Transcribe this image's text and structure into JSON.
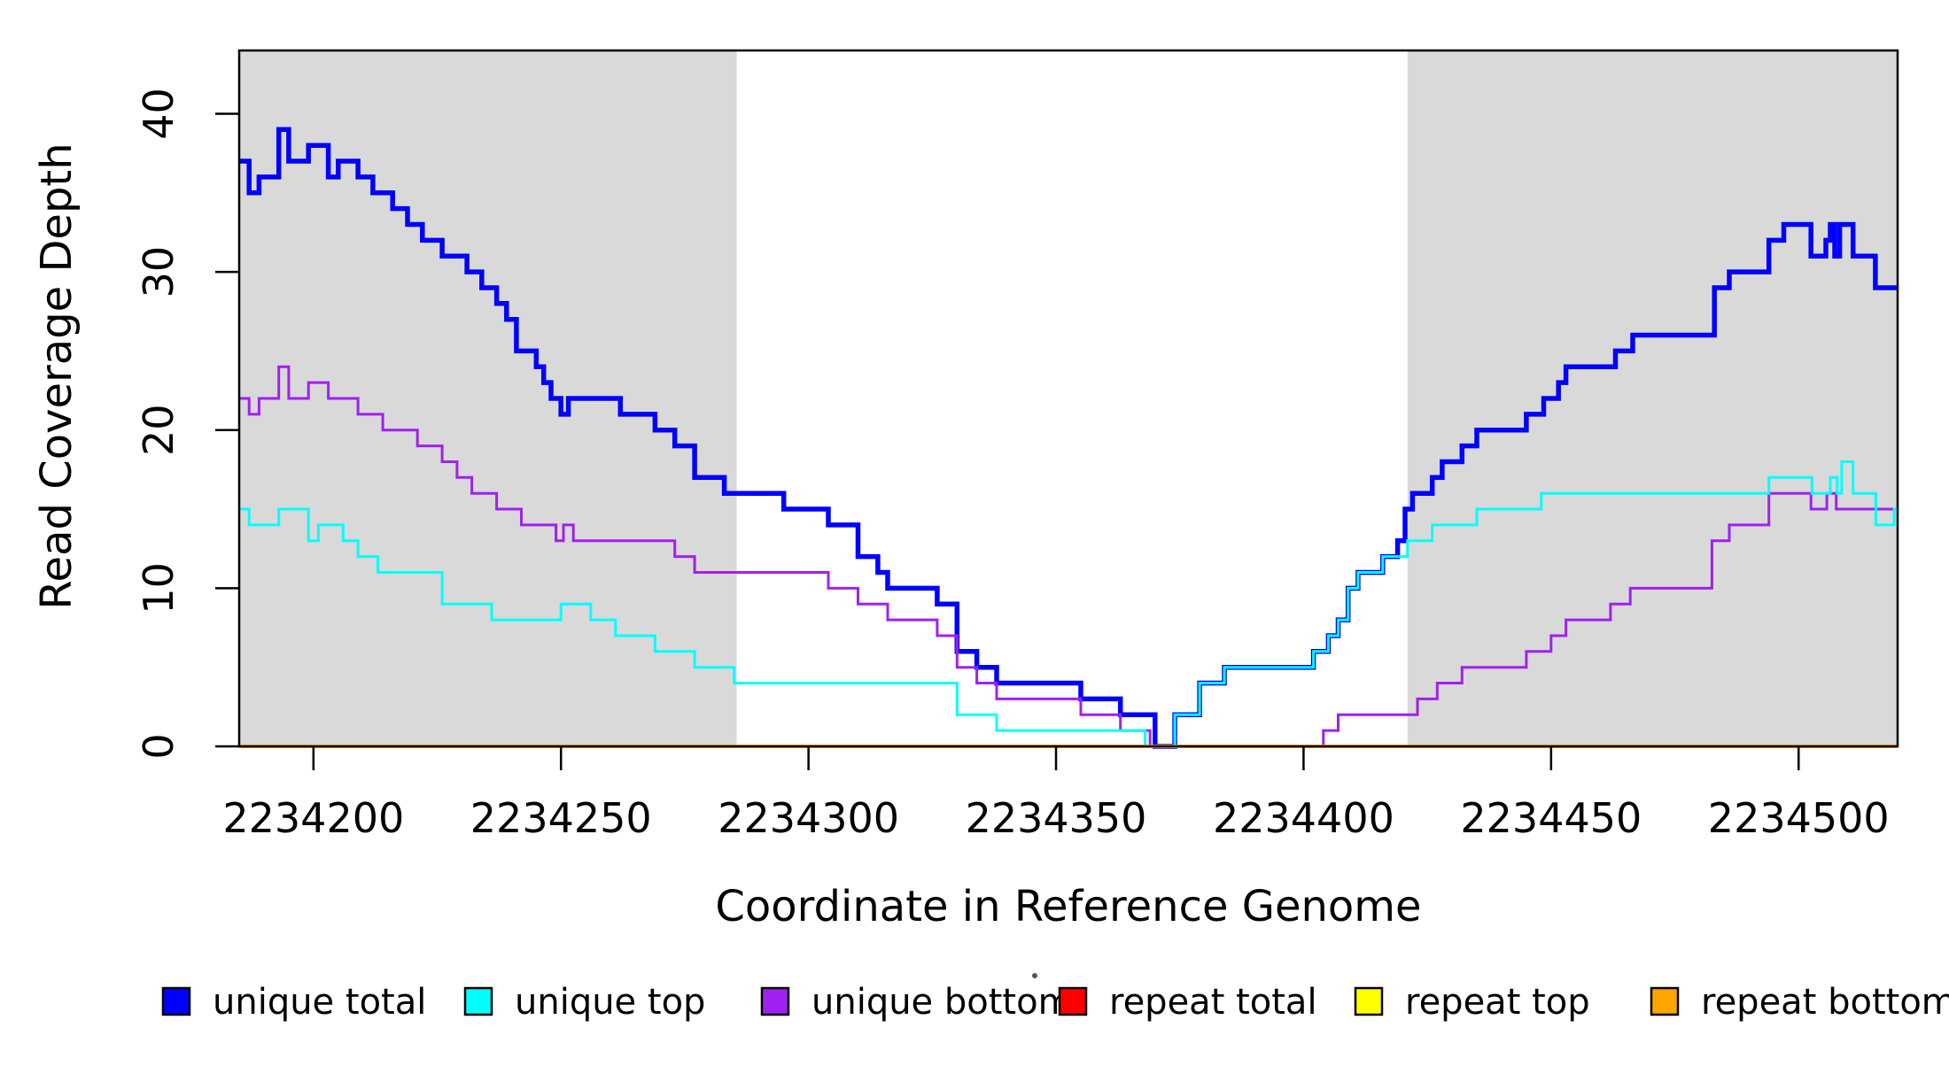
{
  "figure": {
    "kind": "R base-graphics coverage plot",
    "background": "#ffffff"
  },
  "chart_data": {
    "type": "line",
    "step_mode": "after",
    "title": "",
    "xlabel": "Coordinate in Reference Genome",
    "ylabel": "Read Coverage Depth",
    "xlim": [
      2234185,
      2234520
    ],
    "ylim": [
      0,
      44
    ],
    "xticks": [
      2234200,
      2234250,
      2234300,
      2234350,
      2234400,
      2234450,
      2234500
    ],
    "yticks": [
      0,
      10,
      20,
      30,
      40
    ],
    "grid": false,
    "legend_position": "bottom",
    "axis_color": "#000000",
    "shaded_regions": {
      "color": "#D9D9D9",
      "ranges": [
        [
          2234185,
          2234285.5
        ],
        [
          2234421,
          2234520
        ]
      ]
    },
    "series": [
      {
        "name": "unique total",
        "color": "#0000FF",
        "width": 5.5,
        "points": [
          [
            2234185,
            37
          ],
          [
            2234187,
            35
          ],
          [
            2234189,
            36
          ],
          [
            2234193,
            39
          ],
          [
            2234195,
            37
          ],
          [
            2234199,
            38
          ],
          [
            2234203,
            36
          ],
          [
            2234205,
            37
          ],
          [
            2234209,
            36
          ],
          [
            2234212,
            35
          ],
          [
            2234216,
            34
          ],
          [
            2234219,
            33
          ],
          [
            2234222,
            32
          ],
          [
            2234226,
            31
          ],
          [
            2234231,
            30
          ],
          [
            2234234,
            29
          ],
          [
            2234237,
            28
          ],
          [
            2234239,
            27
          ],
          [
            2234241,
            25
          ],
          [
            2234245,
            24
          ],
          [
            2234246.5,
            23
          ],
          [
            2234248,
            22
          ],
          [
            2234250,
            21
          ],
          [
            2234251.5,
            22
          ],
          [
            2234262,
            21
          ],
          [
            2234269,
            20
          ],
          [
            2234273,
            19
          ],
          [
            2234277,
            17
          ],
          [
            2234283,
            16
          ],
          [
            2234295,
            15
          ],
          [
            2234304,
            14
          ],
          [
            2234310,
            12
          ],
          [
            2234314,
            11
          ],
          [
            2234316,
            10
          ],
          [
            2234326,
            9
          ],
          [
            2234330,
            6
          ],
          [
            2234334,
            5
          ],
          [
            2234338,
            4
          ],
          [
            2234355,
            3
          ],
          [
            2234363,
            2
          ],
          [
            2234370,
            0
          ],
          [
            2234374,
            2
          ],
          [
            2234379,
            4
          ],
          [
            2234384,
            5
          ],
          [
            2234402,
            6
          ],
          [
            2234405,
            7
          ],
          [
            2234407,
            8
          ],
          [
            2234409,
            10
          ],
          [
            2234411,
            11
          ],
          [
            2234416,
            12
          ],
          [
            2234419,
            13
          ],
          [
            2234420.5,
            15
          ],
          [
            2234422,
            16
          ],
          [
            2234426,
            17
          ],
          [
            2234428,
            18
          ],
          [
            2234432,
            19
          ],
          [
            2234435,
            20
          ],
          [
            2234445,
            21
          ],
          [
            2234448.5,
            22
          ],
          [
            2234451.5,
            23
          ],
          [
            2234453,
            24
          ],
          [
            2234463,
            25
          ],
          [
            2234466.5,
            26
          ],
          [
            2234483,
            29
          ],
          [
            2234486,
            30
          ],
          [
            2234494,
            32
          ],
          [
            2234497,
            33
          ],
          [
            2234502.5,
            31
          ],
          [
            2234505.5,
            32
          ],
          [
            2234506.4,
            33
          ],
          [
            2234507.3,
            31
          ],
          [
            2234508.3,
            33
          ],
          [
            2234511,
            31
          ],
          [
            2234515.5,
            29
          ]
        ]
      },
      {
        "name": "unique bottom",
        "color": "#A020F0",
        "width": 3,
        "points": [
          [
            2234185,
            22
          ],
          [
            2234187,
            21
          ],
          [
            2234189,
            22
          ],
          [
            2234193,
            24
          ],
          [
            2234195,
            22
          ],
          [
            2234199,
            23
          ],
          [
            2234203,
            22
          ],
          [
            2234209,
            21
          ],
          [
            2234214,
            20
          ],
          [
            2234221,
            19
          ],
          [
            2234226,
            18
          ],
          [
            2234229,
            17
          ],
          [
            2234232,
            16
          ],
          [
            2234237,
            15
          ],
          [
            2234242,
            14
          ],
          [
            2234249,
            13
          ],
          [
            2234250.5,
            14
          ],
          [
            2234252.5,
            13
          ],
          [
            2234273,
            12
          ],
          [
            2234277,
            11
          ],
          [
            2234304,
            10
          ],
          [
            2234310,
            9
          ],
          [
            2234316,
            8
          ],
          [
            2234326,
            7
          ],
          [
            2234330,
            5
          ],
          [
            2234334,
            4
          ],
          [
            2234338,
            3
          ],
          [
            2234355,
            2
          ],
          [
            2234363,
            1
          ],
          [
            2234369,
            0
          ],
          [
            2234404,
            1
          ],
          [
            2234407,
            2
          ],
          [
            2234423,
            3
          ],
          [
            2234427,
            4
          ],
          [
            2234432,
            5
          ],
          [
            2234445,
            6
          ],
          [
            2234450,
            7
          ],
          [
            2234453,
            8
          ],
          [
            2234462,
            9
          ],
          [
            2234466,
            10
          ],
          [
            2234482.5,
            13
          ],
          [
            2234486,
            14
          ],
          [
            2234494,
            16
          ],
          [
            2234502.5,
            15
          ],
          [
            2234505.7,
            16
          ],
          [
            2234507.6,
            15
          ]
        ]
      },
      {
        "name": "unique top",
        "color": "#00FFFF",
        "width": 3,
        "points": [
          [
            2234185,
            15
          ],
          [
            2234187,
            14
          ],
          [
            2234193,
            15
          ],
          [
            2234199,
            13
          ],
          [
            2234201,
            14
          ],
          [
            2234206,
            13
          ],
          [
            2234209,
            12
          ],
          [
            2234213,
            11
          ],
          [
            2234226,
            9
          ],
          [
            2234236,
            8
          ],
          [
            2234250,
            9
          ],
          [
            2234256,
            8
          ],
          [
            2234261,
            7
          ],
          [
            2234269,
            6
          ],
          [
            2234277,
            5
          ],
          [
            2234285,
            4
          ],
          [
            2234330,
            2
          ],
          [
            2234338,
            1
          ],
          [
            2234368,
            0
          ],
          [
            2234374,
            2
          ],
          [
            2234379,
            4
          ],
          [
            2234384,
            5
          ],
          [
            2234402,
            6
          ],
          [
            2234405,
            7
          ],
          [
            2234407,
            8
          ],
          [
            2234409,
            10
          ],
          [
            2234411,
            11
          ],
          [
            2234416,
            12
          ],
          [
            2234421,
            13
          ],
          [
            2234426,
            14
          ],
          [
            2234435,
            15
          ],
          [
            2234448,
            16
          ],
          [
            2234494,
            17
          ],
          [
            2234502.7,
            16
          ],
          [
            2234506.4,
            17
          ],
          [
            2234507.8,
            16
          ],
          [
            2234508.7,
            18
          ],
          [
            2234511,
            16
          ],
          [
            2234515.6,
            14
          ],
          [
            2234519.3,
            15
          ]
        ]
      },
      {
        "name": "repeat total",
        "color": "#FF0000",
        "width": 3,
        "points": [
          [
            2234185,
            0
          ]
        ]
      },
      {
        "name": "repeat top",
        "color": "#FFFF00",
        "width": 3,
        "points": [
          [
            2234185,
            0
          ]
        ]
      },
      {
        "name": "repeat bottom",
        "color": "#FFA500",
        "width": 4,
        "points": [
          [
            2234185,
            0
          ]
        ]
      }
    ],
    "legend_order": [
      "unique total",
      "unique top",
      "unique bottom",
      "repeat total",
      "repeat top",
      "repeat bottom"
    ]
  }
}
